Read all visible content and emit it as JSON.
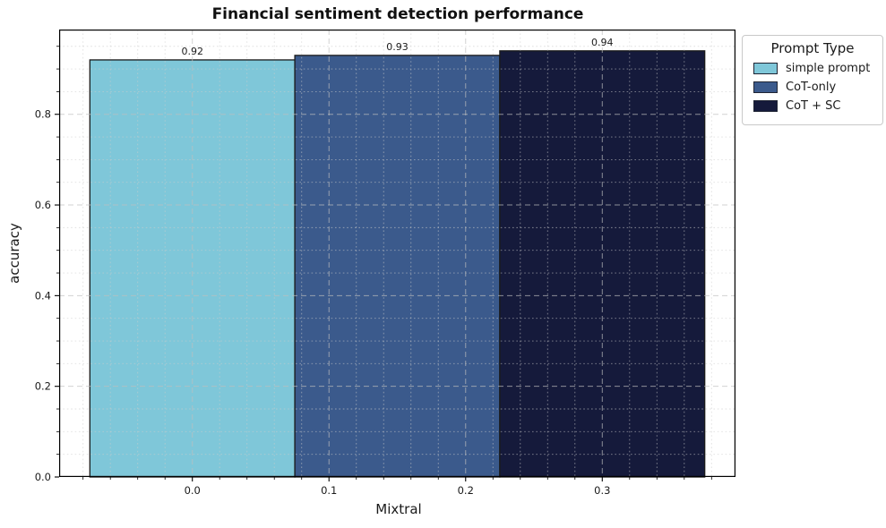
{
  "chart_data": {
    "type": "bar",
    "title": "Financial sentiment detection performance",
    "xlabel": "Mixtral",
    "ylabel": "accuracy",
    "categories": [
      "simple prompt",
      "CoT-only",
      "CoT + SC"
    ],
    "series": [
      {
        "name": "simple prompt",
        "value": 0.92,
        "label": "0.92",
        "color": "#7fc7d9",
        "center": 0.0
      },
      {
        "name": "CoT-only",
        "value": 0.93,
        "label": "0.93",
        "color": "#3b5a8c",
        "center": 0.15
      },
      {
        "name": "CoT + SC",
        "value": 0.94,
        "label": "0.94",
        "color": "#151a3b",
        "center": 0.3
      }
    ],
    "bar_width": 0.15,
    "bar_edge_color": "#1a1a1a",
    "xlim": [
      -0.0975,
      0.3975
    ],
    "ylim": [
      0,
      0.987
    ],
    "x_ticks": [
      {
        "value": 0.0,
        "label": "0.0"
      },
      {
        "value": 0.1,
        "label": "0.1"
      },
      {
        "value": 0.2,
        "label": "0.2"
      },
      {
        "value": 0.3,
        "label": "0.3"
      }
    ],
    "y_ticks": [
      {
        "value": 0.0,
        "label": "0.0"
      },
      {
        "value": 0.2,
        "label": "0.2"
      },
      {
        "value": 0.4,
        "label": "0.4"
      },
      {
        "value": 0.6,
        "label": "0.6"
      },
      {
        "value": 0.8,
        "label": "0.8"
      }
    ],
    "x_minor_step": 0.02,
    "x_major_step": 0.1,
    "y_minor_step": 0.05,
    "y_major_step": 0.2,
    "grid": {
      "major": true,
      "minor": true,
      "drawn_above_bars": true
    },
    "grid_colors": {
      "major": "#bfbfbf",
      "minor": "#cccccc"
    },
    "legend": {
      "title": "Prompt Type",
      "position": "upper-right-outside",
      "entries": [
        "simple prompt",
        "CoT-only",
        "CoT + SC"
      ]
    }
  }
}
